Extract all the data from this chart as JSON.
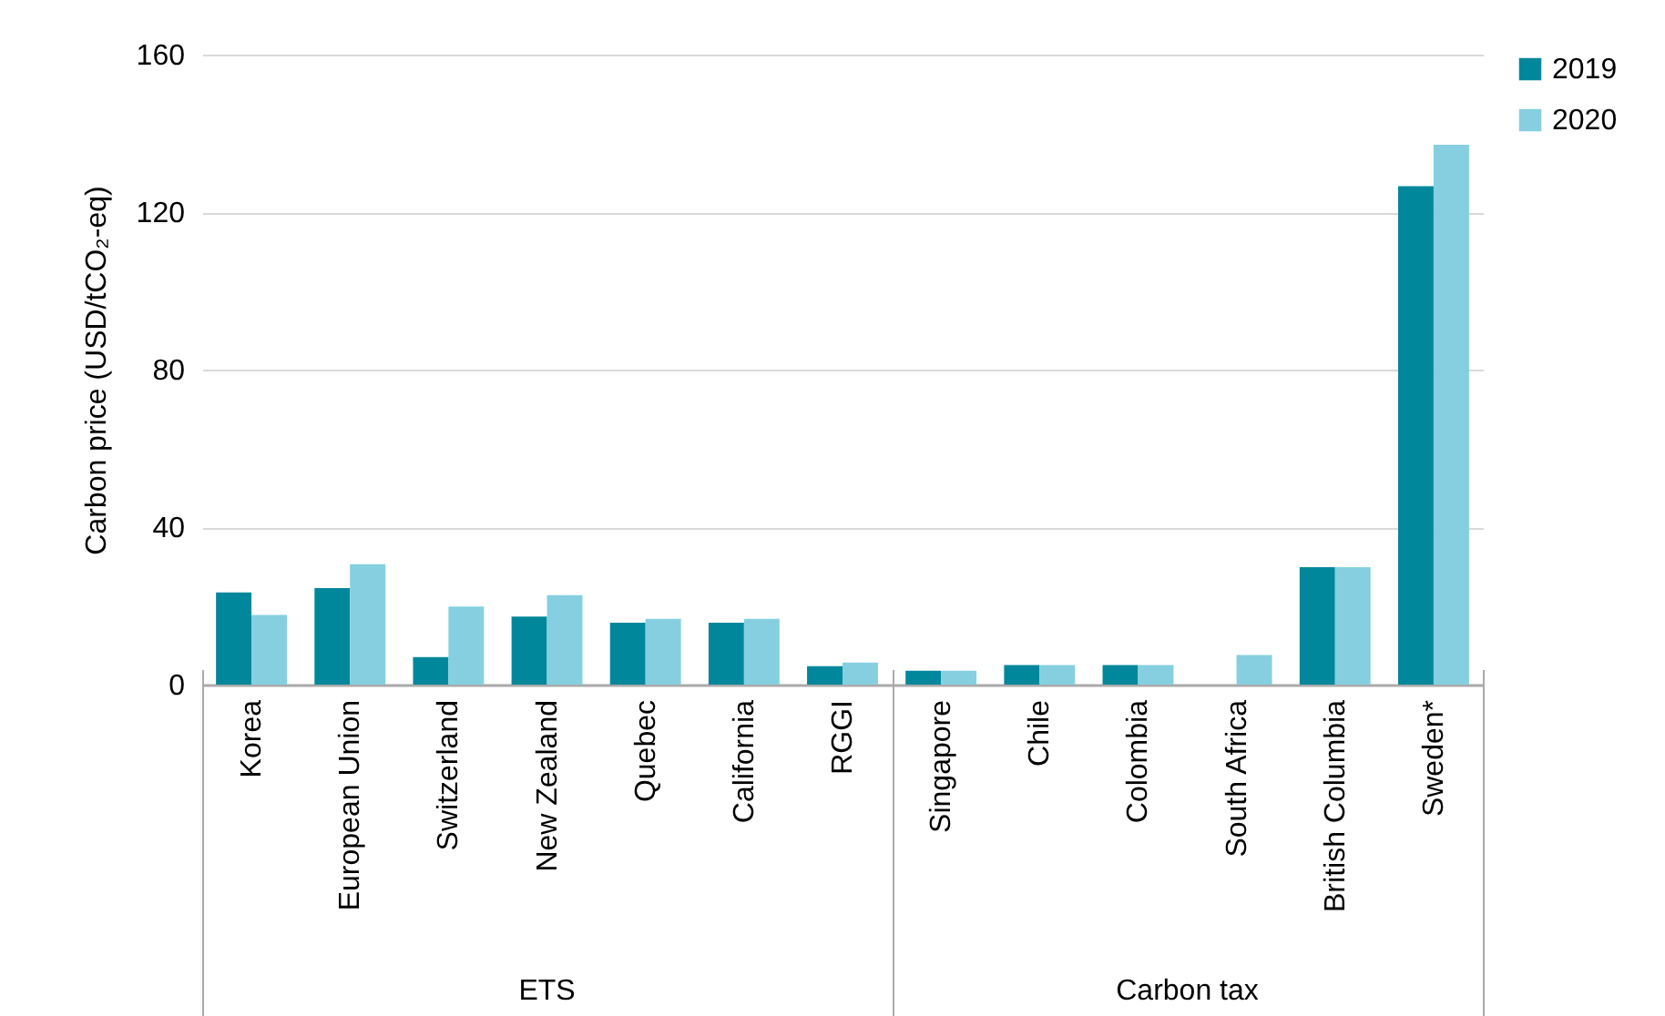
{
  "chart_data": {
    "type": "bar",
    "ylabel": "Carbon price (USD/tCO₂-eq)",
    "categories": [
      "Korea",
      "European Union",
      "Switzerland",
      "New Zealand",
      "Quebec",
      "California",
      "RGGI",
      "Singapore",
      "Chile",
      "Colombia",
      "South Africa",
      "British Columbia",
      "Sweden*"
    ],
    "series": [
      {
        "name": "2019",
        "color": "#00879b",
        "values": [
          23.4,
          24.5,
          7,
          17.3,
          15.7,
          15.7,
          4.7,
          3.5,
          5,
          5,
          null,
          29.8,
          126.6
        ]
      },
      {
        "name": "2020",
        "color": "#85cfe0",
        "values": [
          17.7,
          30.6,
          19.8,
          22.7,
          16.7,
          16.7,
          5.6,
          3.5,
          5,
          5,
          7.5,
          29.8,
          137.1
        ]
      }
    ],
    "ylim": [
      0,
      160
    ],
    "yticks": [
      0,
      40,
      80,
      120,
      160
    ],
    "grid": "y",
    "legend": "right",
    "annotations": [
      "ETS",
      "Carbon tax"
    ]
  }
}
